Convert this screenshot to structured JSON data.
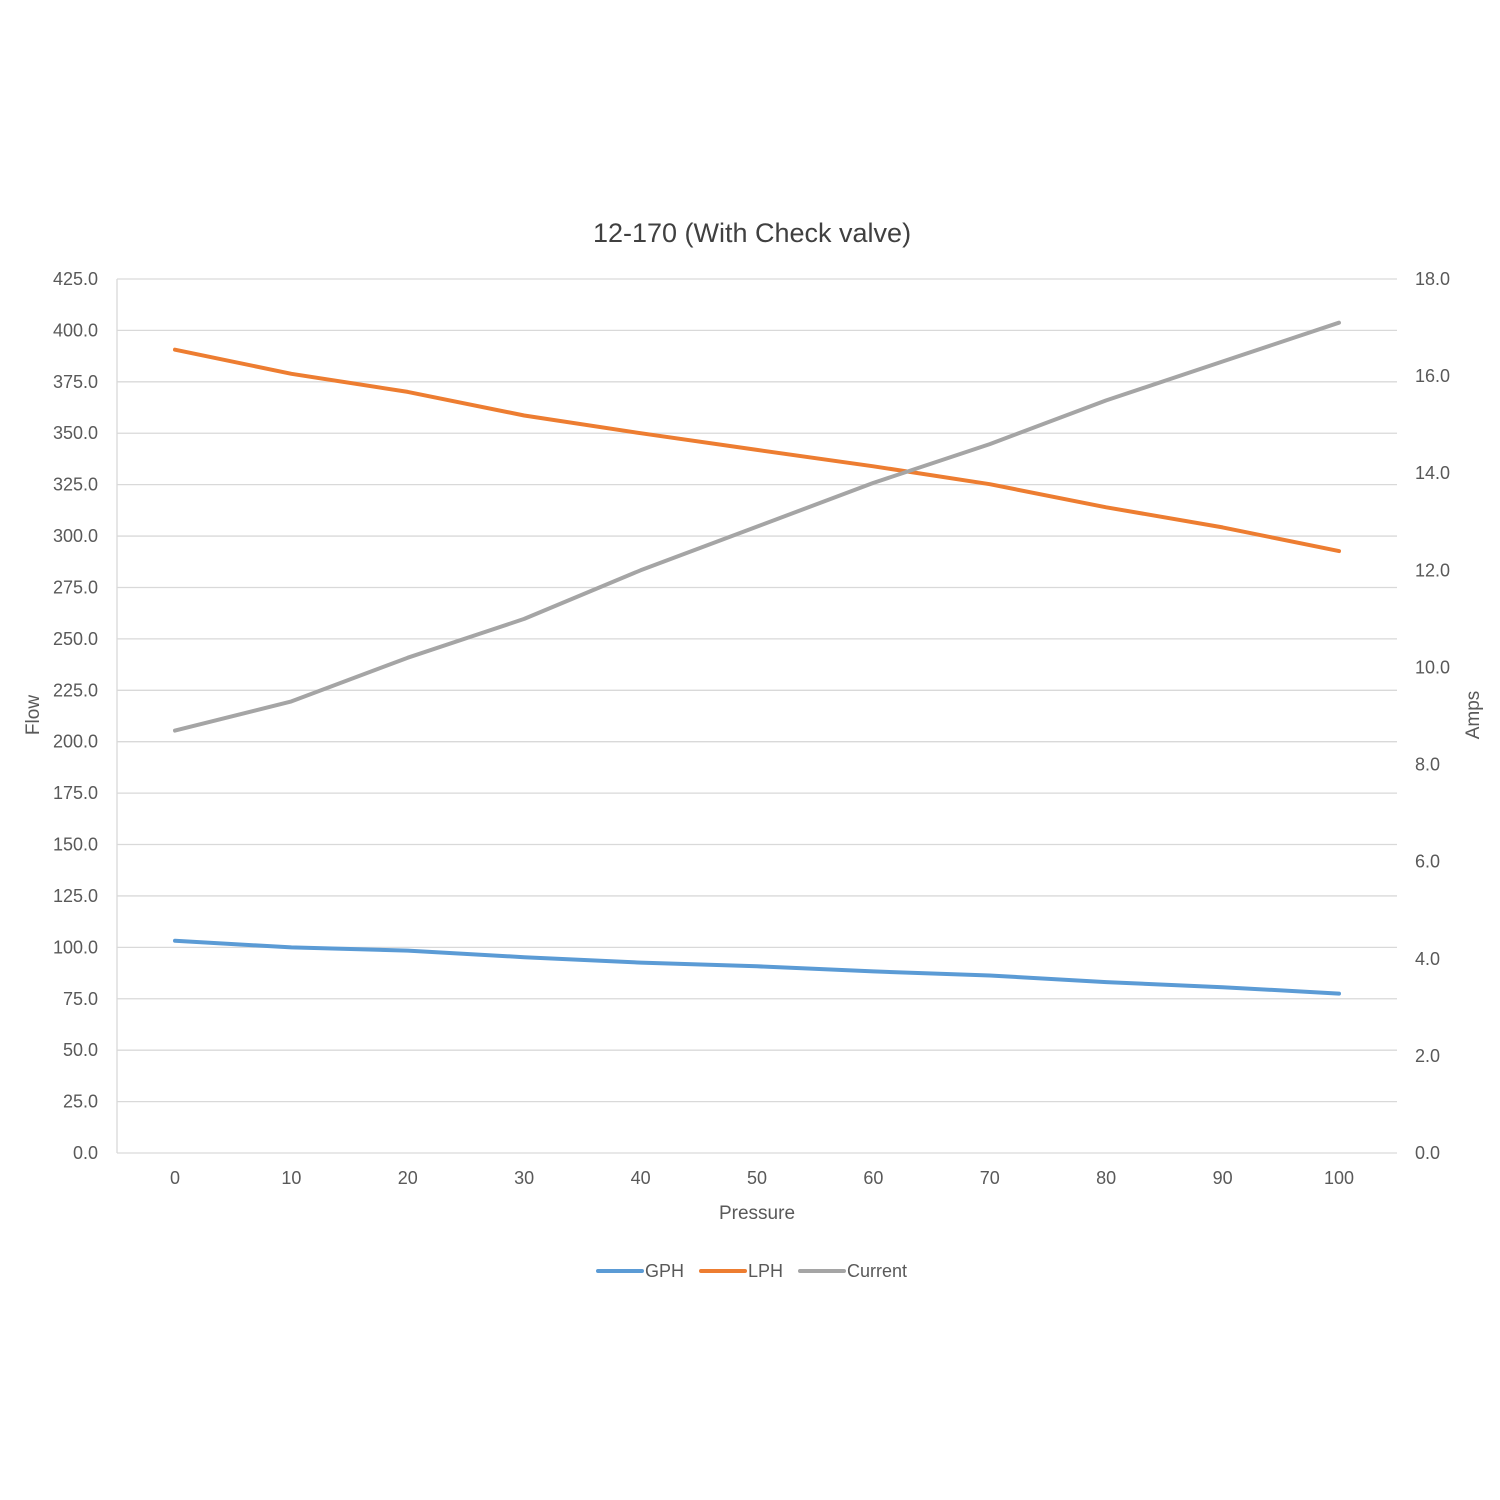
{
  "chart_data": {
    "type": "line",
    "title": "12-170 (With Check valve)",
    "xlabel": "Pressure",
    "ylabel": "Flow",
    "y2label": "Amps",
    "x": [
      0,
      10,
      20,
      30,
      40,
      50,
      60,
      70,
      80,
      90,
      100
    ],
    "x_tick_labels": [
      "0",
      "10",
      "20",
      "30",
      "40",
      "50",
      "60",
      "70",
      "80",
      "90",
      "100"
    ],
    "ylim": [
      0,
      425
    ],
    "y_tick_labels": [
      "0.0",
      "25.0",
      "50.0",
      "75.0",
      "100.0",
      "125.0",
      "150.0",
      "175.0",
      "200.0",
      "225.0",
      "250.0",
      "275.0",
      "300.0",
      "325.0",
      "350.0",
      "375.0",
      "400.0",
      "425.0"
    ],
    "y2lim": [
      0,
      18
    ],
    "y2_tick_labels": [
      "0.0",
      "2.0",
      "4.0",
      "6.0",
      "8.0",
      "10.0",
      "12.0",
      "14.0",
      "16.0",
      "18.0"
    ],
    "grid": true,
    "legend_position": "bottom",
    "series": [
      {
        "name": "GPH",
        "axis": "left",
        "color": "#5b9bd5",
        "values": [
          103.2,
          100.0,
          98.4,
          95.2,
          92.6,
          90.8,
          88.3,
          86.3,
          83.1,
          80.6,
          77.5
        ]
      },
      {
        "name": "LPH",
        "axis": "left",
        "color": "#ed7d31",
        "values": [
          390.6,
          378.9,
          370.1,
          358.6,
          350.0,
          341.9,
          333.9,
          325.2,
          314.0,
          304.2,
          292.7
        ]
      },
      {
        "name": "Current",
        "axis": "right",
        "color": "#a5a5a5",
        "values": [
          8.7,
          9.3,
          10.2,
          11.0,
          12.0,
          12.9,
          13.8,
          14.6,
          15.5,
          16.3,
          17.1
        ]
      }
    ]
  }
}
